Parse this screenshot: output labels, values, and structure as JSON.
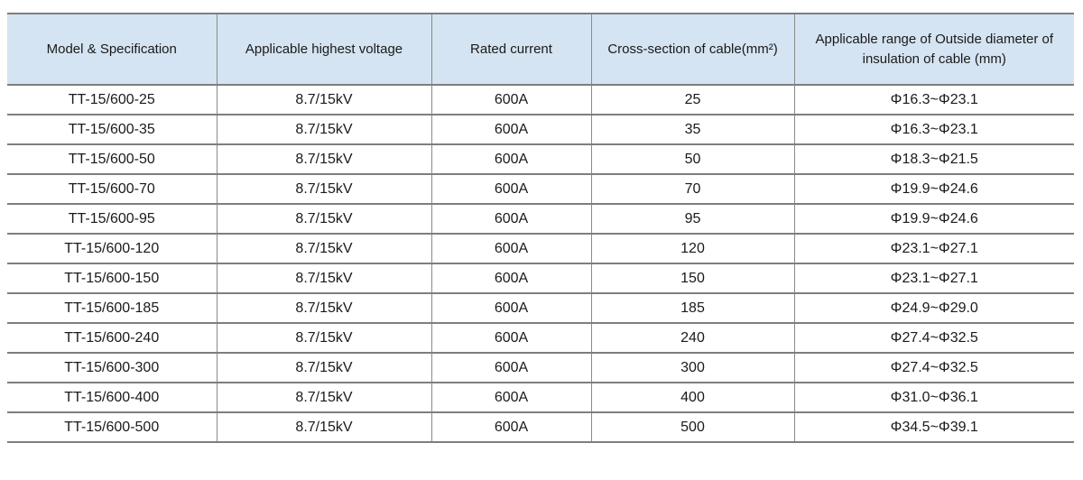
{
  "colors": {
    "header_background": "#d5e4f2",
    "horizontal_border": "#7e7e7e",
    "vertical_border": "#8a8a8a",
    "text": "#1a1a1a",
    "page_background": "#ffffff"
  },
  "table": {
    "columns": [
      {
        "id": "model",
        "label": "Model & Specification"
      },
      {
        "id": "voltage",
        "label": "Applicable highest voltage"
      },
      {
        "id": "current",
        "label": "Rated current"
      },
      {
        "id": "cross_section",
        "label": "Cross-section of cable(mm²)"
      },
      {
        "id": "diameter_range",
        "label": "Applicable range of Outside diameter of insulation of cable (mm)"
      }
    ],
    "rows": [
      [
        "TT-15/600-25",
        "8.7/15kV",
        "600A",
        "25",
        "Φ16.3~Φ23.1"
      ],
      [
        "TT-15/600-35",
        "8.7/15kV",
        "600A",
        "35",
        "Φ16.3~Φ23.1"
      ],
      [
        "TT-15/600-50",
        "8.7/15kV",
        "600A",
        "50",
        "Φ18.3~Φ21.5"
      ],
      [
        "TT-15/600-70",
        "8.7/15kV",
        "600A",
        "70",
        "Φ19.9~Φ24.6"
      ],
      [
        "TT-15/600-95",
        "8.7/15kV",
        "600A",
        "95",
        "Φ19.9~Φ24.6"
      ],
      [
        "TT-15/600-120",
        "8.7/15kV",
        "600A",
        "120",
        "Φ23.1~Φ27.1"
      ],
      [
        "TT-15/600-150",
        "8.7/15kV",
        "600A",
        "150",
        "Φ23.1~Φ27.1"
      ],
      [
        "TT-15/600-185",
        "8.7/15kV",
        "600A",
        "185",
        "Φ24.9~Φ29.0"
      ],
      [
        "TT-15/600-240",
        "8.7/15kV",
        "600A",
        "240",
        "Φ27.4~Φ32.5"
      ],
      [
        "TT-15/600-300",
        "8.7/15kV",
        "600A",
        "300",
        "Φ27.4~Φ32.5"
      ],
      [
        "TT-15/600-400",
        "8.7/15kV",
        "600A",
        "400",
        "Φ31.0~Φ36.1"
      ],
      [
        "TT-15/600-500",
        "8.7/15kV",
        "600A",
        "500",
        "Φ34.5~Φ39.1"
      ]
    ]
  }
}
